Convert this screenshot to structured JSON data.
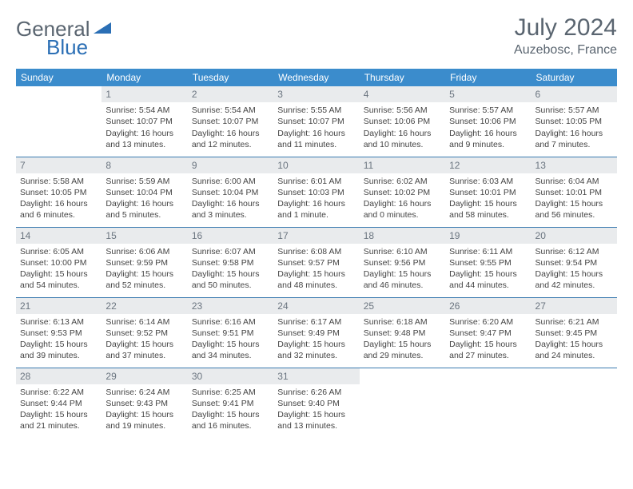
{
  "logo": {
    "part1": "General",
    "part2": "Blue"
  },
  "title": "July 2024",
  "location": "Auzebosc, France",
  "columns": [
    "Sunday",
    "Monday",
    "Tuesday",
    "Wednesday",
    "Thursday",
    "Friday",
    "Saturday"
  ],
  "colors": {
    "header_bg": "#3b8ccc",
    "header_text": "#ffffff",
    "daynum_bg": "#e9ebed",
    "daynum_text": "#6b7580",
    "rule": "#3b7bb0",
    "logo_gray": "#5a6570",
    "logo_blue": "#2b6fb5"
  },
  "weeks": [
    [
      {
        "n": "",
        "sr": "",
        "ss": "",
        "dl": "",
        "empty": true
      },
      {
        "n": "1",
        "sr": "Sunrise: 5:54 AM",
        "ss": "Sunset: 10:07 PM",
        "dl": "Daylight: 16 hours and 13 minutes."
      },
      {
        "n": "2",
        "sr": "Sunrise: 5:54 AM",
        "ss": "Sunset: 10:07 PM",
        "dl": "Daylight: 16 hours and 12 minutes."
      },
      {
        "n": "3",
        "sr": "Sunrise: 5:55 AM",
        "ss": "Sunset: 10:07 PM",
        "dl": "Daylight: 16 hours and 11 minutes."
      },
      {
        "n": "4",
        "sr": "Sunrise: 5:56 AM",
        "ss": "Sunset: 10:06 PM",
        "dl": "Daylight: 16 hours and 10 minutes."
      },
      {
        "n": "5",
        "sr": "Sunrise: 5:57 AM",
        "ss": "Sunset: 10:06 PM",
        "dl": "Daylight: 16 hours and 9 minutes."
      },
      {
        "n": "6",
        "sr": "Sunrise: 5:57 AM",
        "ss": "Sunset: 10:05 PM",
        "dl": "Daylight: 16 hours and 7 minutes."
      }
    ],
    [
      {
        "n": "7",
        "sr": "Sunrise: 5:58 AM",
        "ss": "Sunset: 10:05 PM",
        "dl": "Daylight: 16 hours and 6 minutes."
      },
      {
        "n": "8",
        "sr": "Sunrise: 5:59 AM",
        "ss": "Sunset: 10:04 PM",
        "dl": "Daylight: 16 hours and 5 minutes."
      },
      {
        "n": "9",
        "sr": "Sunrise: 6:00 AM",
        "ss": "Sunset: 10:04 PM",
        "dl": "Daylight: 16 hours and 3 minutes."
      },
      {
        "n": "10",
        "sr": "Sunrise: 6:01 AM",
        "ss": "Sunset: 10:03 PM",
        "dl": "Daylight: 16 hours and 1 minute."
      },
      {
        "n": "11",
        "sr": "Sunrise: 6:02 AM",
        "ss": "Sunset: 10:02 PM",
        "dl": "Daylight: 16 hours and 0 minutes."
      },
      {
        "n": "12",
        "sr": "Sunrise: 6:03 AM",
        "ss": "Sunset: 10:01 PM",
        "dl": "Daylight: 15 hours and 58 minutes."
      },
      {
        "n": "13",
        "sr": "Sunrise: 6:04 AM",
        "ss": "Sunset: 10:01 PM",
        "dl": "Daylight: 15 hours and 56 minutes."
      }
    ],
    [
      {
        "n": "14",
        "sr": "Sunrise: 6:05 AM",
        "ss": "Sunset: 10:00 PM",
        "dl": "Daylight: 15 hours and 54 minutes."
      },
      {
        "n": "15",
        "sr": "Sunrise: 6:06 AM",
        "ss": "Sunset: 9:59 PM",
        "dl": "Daylight: 15 hours and 52 minutes."
      },
      {
        "n": "16",
        "sr": "Sunrise: 6:07 AM",
        "ss": "Sunset: 9:58 PM",
        "dl": "Daylight: 15 hours and 50 minutes."
      },
      {
        "n": "17",
        "sr": "Sunrise: 6:08 AM",
        "ss": "Sunset: 9:57 PM",
        "dl": "Daylight: 15 hours and 48 minutes."
      },
      {
        "n": "18",
        "sr": "Sunrise: 6:10 AM",
        "ss": "Sunset: 9:56 PM",
        "dl": "Daylight: 15 hours and 46 minutes."
      },
      {
        "n": "19",
        "sr": "Sunrise: 6:11 AM",
        "ss": "Sunset: 9:55 PM",
        "dl": "Daylight: 15 hours and 44 minutes."
      },
      {
        "n": "20",
        "sr": "Sunrise: 6:12 AM",
        "ss": "Sunset: 9:54 PM",
        "dl": "Daylight: 15 hours and 42 minutes."
      }
    ],
    [
      {
        "n": "21",
        "sr": "Sunrise: 6:13 AM",
        "ss": "Sunset: 9:53 PM",
        "dl": "Daylight: 15 hours and 39 minutes."
      },
      {
        "n": "22",
        "sr": "Sunrise: 6:14 AM",
        "ss": "Sunset: 9:52 PM",
        "dl": "Daylight: 15 hours and 37 minutes."
      },
      {
        "n": "23",
        "sr": "Sunrise: 6:16 AM",
        "ss": "Sunset: 9:51 PM",
        "dl": "Daylight: 15 hours and 34 minutes."
      },
      {
        "n": "24",
        "sr": "Sunrise: 6:17 AM",
        "ss": "Sunset: 9:49 PM",
        "dl": "Daylight: 15 hours and 32 minutes."
      },
      {
        "n": "25",
        "sr": "Sunrise: 6:18 AM",
        "ss": "Sunset: 9:48 PM",
        "dl": "Daylight: 15 hours and 29 minutes."
      },
      {
        "n": "26",
        "sr": "Sunrise: 6:20 AM",
        "ss": "Sunset: 9:47 PM",
        "dl": "Daylight: 15 hours and 27 minutes."
      },
      {
        "n": "27",
        "sr": "Sunrise: 6:21 AM",
        "ss": "Sunset: 9:45 PM",
        "dl": "Daylight: 15 hours and 24 minutes."
      }
    ],
    [
      {
        "n": "28",
        "sr": "Sunrise: 6:22 AM",
        "ss": "Sunset: 9:44 PM",
        "dl": "Daylight: 15 hours and 21 minutes."
      },
      {
        "n": "29",
        "sr": "Sunrise: 6:24 AM",
        "ss": "Sunset: 9:43 PM",
        "dl": "Daylight: 15 hours and 19 minutes."
      },
      {
        "n": "30",
        "sr": "Sunrise: 6:25 AM",
        "ss": "Sunset: 9:41 PM",
        "dl": "Daylight: 15 hours and 16 minutes."
      },
      {
        "n": "31",
        "sr": "Sunrise: 6:26 AM",
        "ss": "Sunset: 9:40 PM",
        "dl": "Daylight: 15 hours and 13 minutes."
      },
      {
        "n": "",
        "sr": "",
        "ss": "",
        "dl": "",
        "empty": true
      },
      {
        "n": "",
        "sr": "",
        "ss": "",
        "dl": "",
        "empty": true
      },
      {
        "n": "",
        "sr": "",
        "ss": "",
        "dl": "",
        "empty": true
      }
    ]
  ]
}
